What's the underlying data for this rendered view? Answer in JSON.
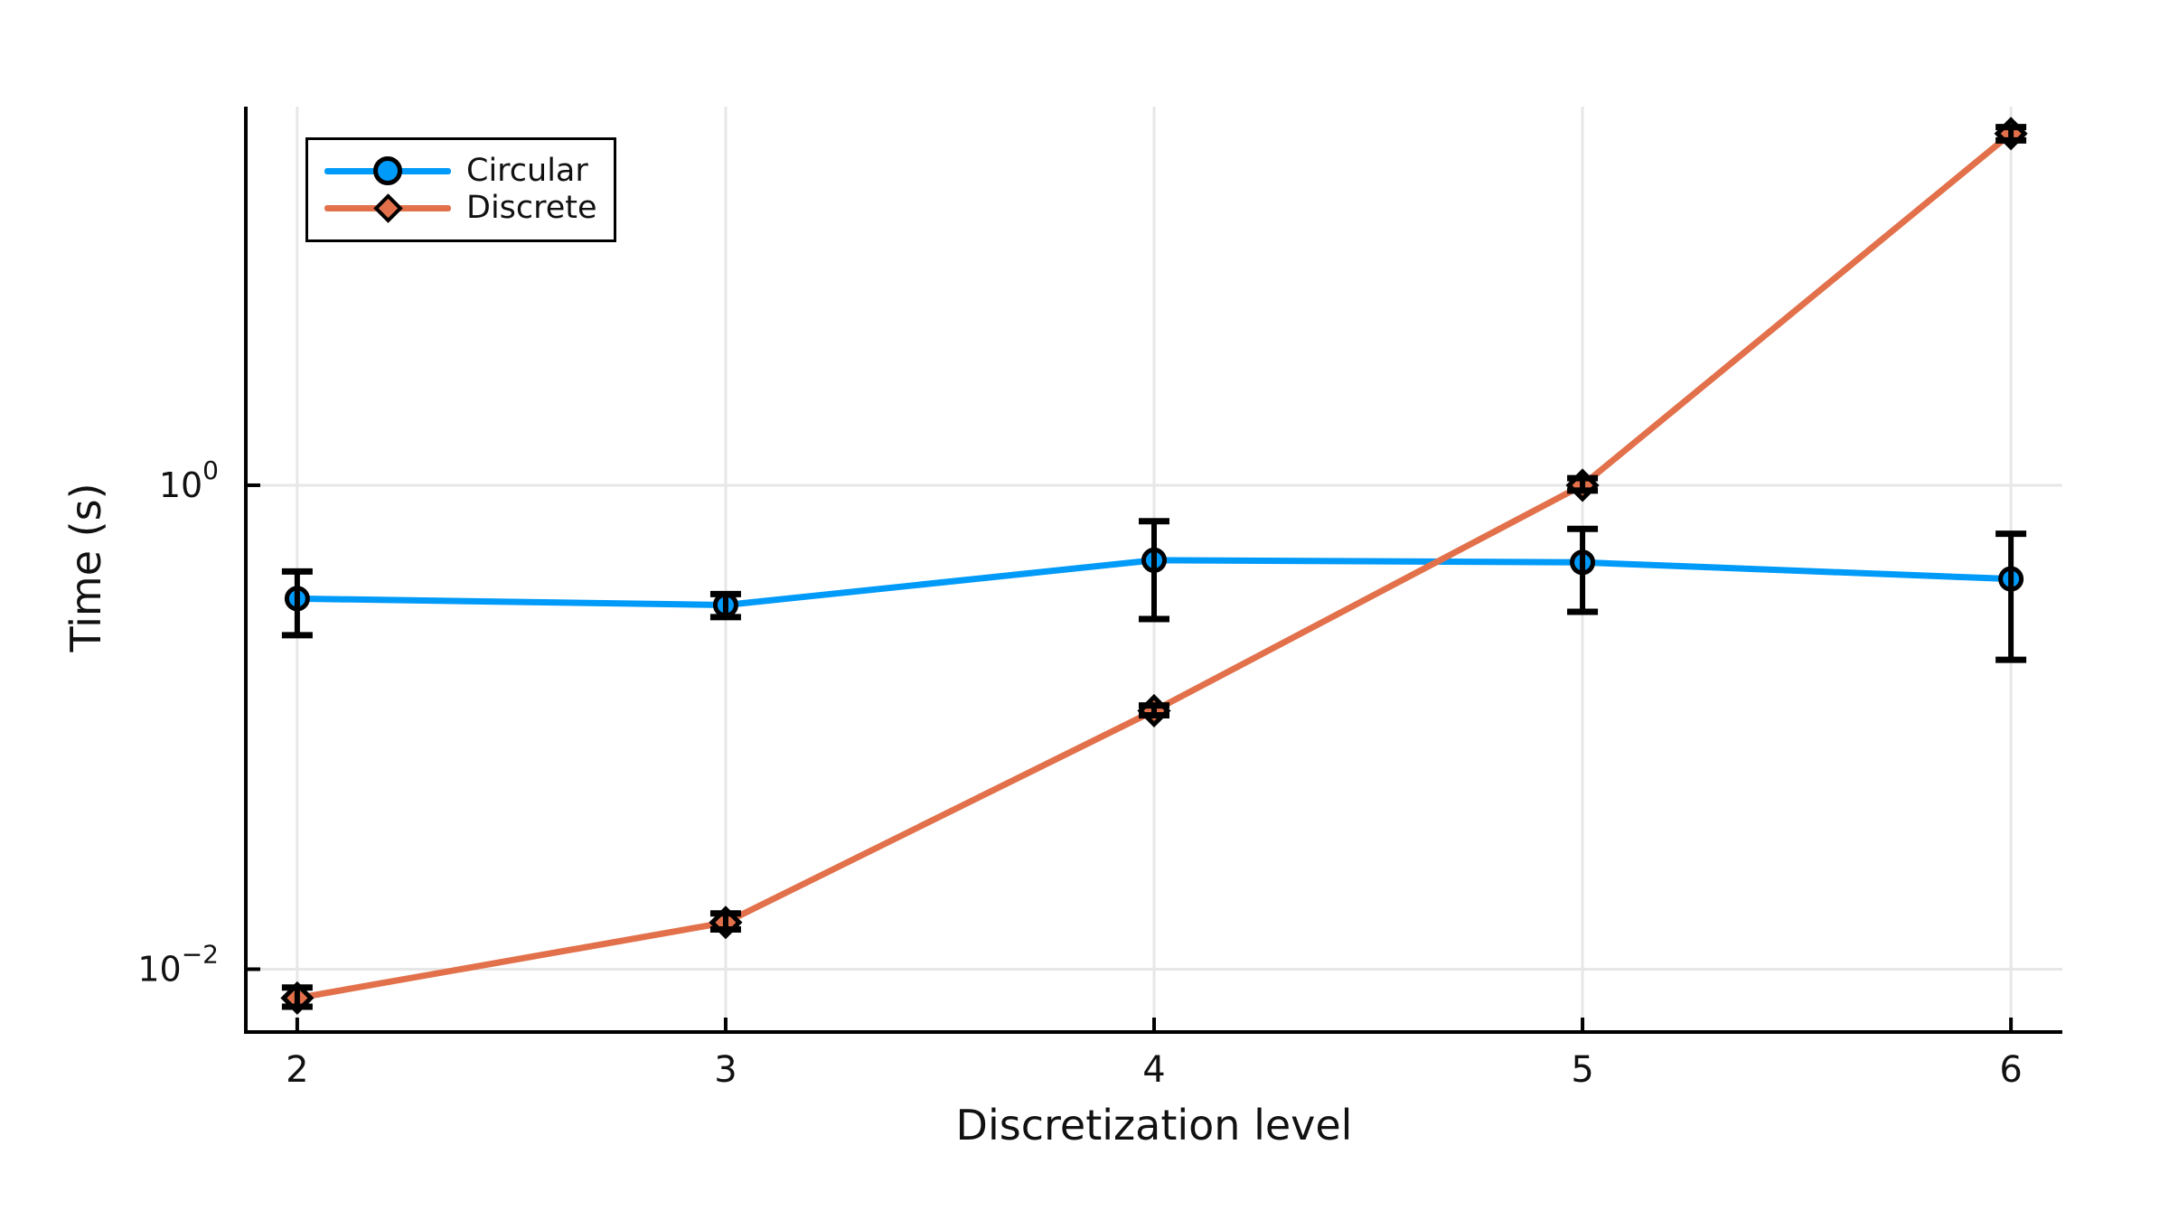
{
  "figure": {
    "background": "#FFFFFF"
  },
  "chart_data": {
    "type": "line",
    "title": "",
    "xlabel": "Discretization level",
    "ylabel": "Time (s)",
    "x": [
      2,
      3,
      4,
      5,
      6
    ],
    "series": [
      {
        "name": "Circular",
        "marker": "circle",
        "color": "#009AF9",
        "values": [
          0.34,
          0.32,
          0.49,
          0.48,
          0.41
        ],
        "err_low": [
          0.24,
          0.285,
          0.28,
          0.3,
          0.19
        ],
        "err_high": [
          0.44,
          0.355,
          0.71,
          0.66,
          0.63
        ]
      },
      {
        "name": "Discrete",
        "marker": "diamond",
        "color": "#E2714B",
        "values": [
          0.0076,
          0.0156,
          0.117,
          1.0,
          28.4
        ],
        "err_low": [
          0.007,
          0.0146,
          0.112,
          0.95,
          26.6
        ],
        "err_high": [
          0.0084,
          0.017,
          0.123,
          1.07,
          30.2
        ]
      }
    ],
    "x_ticks": [
      2,
      3,
      4,
      5,
      6
    ],
    "y_tick_exponents": [
      -2,
      0
    ],
    "xlim": [
      1.88,
      6.12
    ],
    "ylim": [
      0.0055,
      36.7
    ],
    "yscale": "log",
    "grid": true,
    "legend_position": "top-left",
    "axis_color": "#000000",
    "grid_color": "#E7E7E7",
    "error_bar_color": "#000000",
    "tick_label_color": "#111111"
  }
}
